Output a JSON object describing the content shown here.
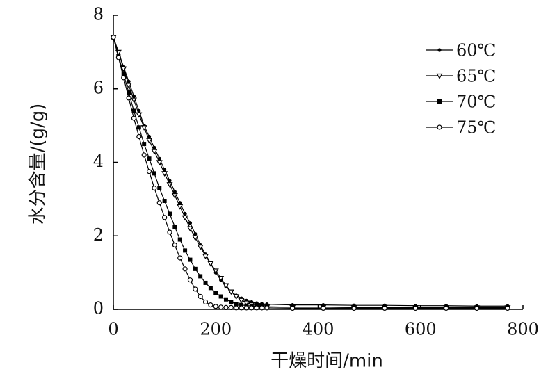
{
  "chart_data": {
    "type": "line",
    "x_label": "干燥时间/min",
    "y_label": "水分含量/(g/g)",
    "x": [
      0,
      10,
      20,
      30,
      40,
      50,
      60,
      70,
      80,
      90,
      100,
      110,
      120,
      130,
      140,
      150,
      160,
      170,
      180,
      190,
      200,
      210,
      220,
      230,
      240,
      250,
      260,
      270,
      280,
      290,
      300,
      350,
      410,
      470,
      530,
      590,
      650,
      710,
      770
    ],
    "series": [
      {
        "name": "60℃",
        "color": "#000000",
        "marker": "filled-circle",
        "values": [
          7.4,
          7.0,
          6.6,
          6.2,
          5.8,
          5.4,
          5.0,
          4.7,
          4.4,
          4.1,
          3.8,
          3.5,
          3.2,
          2.9,
          2.6,
          2.35,
          2.05,
          1.75,
          1.5,
          1.25,
          1.0,
          0.8,
          0.62,
          0.48,
          0.38,
          0.3,
          0.24,
          0.2,
          0.17,
          0.15,
          0.14,
          0.12,
          0.12,
          0.11,
          0.11,
          0.1,
          0.1,
          0.09,
          0.09
        ]
      },
      {
        "name": "65℃",
        "color": "#000000",
        "marker": "open-triangle",
        "values": [
          7.4,
          7.0,
          6.55,
          6.1,
          5.7,
          5.3,
          4.95,
          4.6,
          4.3,
          4.0,
          3.7,
          3.4,
          3.1,
          2.8,
          2.5,
          2.2,
          1.95,
          1.7,
          1.45,
          1.25,
          1.05,
          0.85,
          0.65,
          0.48,
          0.35,
          0.25,
          0.18,
          0.13,
          0.1,
          0.08,
          0.07,
          0.06,
          0.06,
          0.05,
          0.05,
          0.05,
          0.05,
          0.05,
          0.05
        ]
      },
      {
        "name": "70℃",
        "color": "#000000",
        "marker": "filled-square",
        "values": [
          7.4,
          6.9,
          6.4,
          5.9,
          5.4,
          4.95,
          4.5,
          4.1,
          3.7,
          3.3,
          2.95,
          2.6,
          2.25,
          1.9,
          1.6,
          1.35,
          1.1,
          0.9,
          0.72,
          0.58,
          0.45,
          0.35,
          0.27,
          0.2,
          0.15,
          0.12,
          0.1,
          0.09,
          0.08,
          0.07,
          0.07,
          0.06,
          0.06,
          0.05,
          0.05,
          0.05,
          0.05,
          0.05,
          0.05
        ]
      },
      {
        "name": "75℃",
        "color": "#000000",
        "marker": "open-circle",
        "values": [
          7.4,
          6.85,
          6.3,
          5.75,
          5.2,
          4.7,
          4.2,
          3.75,
          3.3,
          2.9,
          2.5,
          2.1,
          1.75,
          1.4,
          1.1,
          0.8,
          0.55,
          0.35,
          0.2,
          0.12,
          0.08,
          0.06,
          0.05,
          0.05,
          0.04,
          0.04,
          0.04,
          0.04,
          0.04,
          0.04,
          0.04,
          0.03,
          0.03,
          0.03,
          0.03,
          0.03,
          0.03,
          0.03,
          0.03
        ]
      }
    ],
    "xlim": [
      0,
      800
    ],
    "xticks": [
      0,
      200,
      400,
      600,
      800
    ],
    "ylim": [
      0,
      8
    ],
    "yticks": [
      0,
      2,
      4,
      6,
      8
    ],
    "grid": false,
    "legend": "upper right"
  }
}
